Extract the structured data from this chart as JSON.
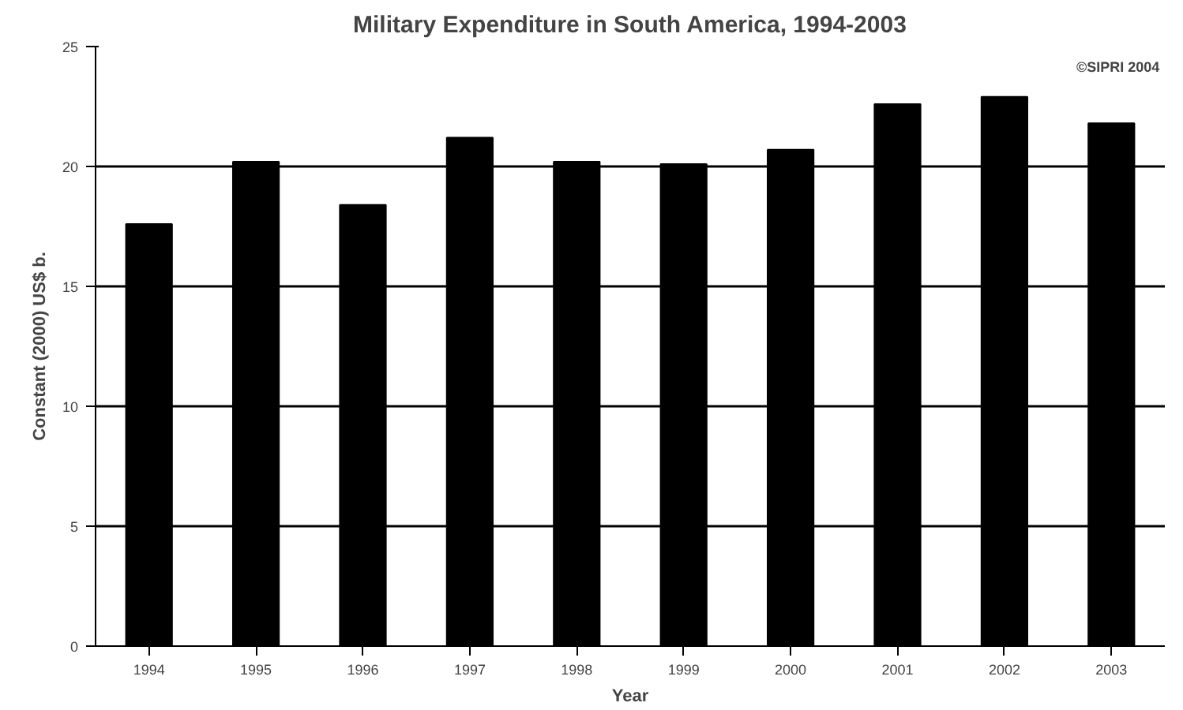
{
  "chart_data": {
    "type": "bar",
    "title": "Military Expenditure in South America, 1994-2003",
    "xlabel": "Year",
    "ylabel": "Constant (2000) US$ b.",
    "categories": [
      "1994",
      "1995",
      "1996",
      "1997",
      "1998",
      "1999",
      "2000",
      "2001",
      "2002",
      "2003"
    ],
    "values": [
      17.6,
      20.2,
      18.4,
      21.2,
      20.2,
      20.1,
      20.7,
      22.6,
      22.9,
      21.8
    ],
    "color": "#000000",
    "ylim": [
      0,
      25
    ],
    "yticks": [
      0,
      5,
      10,
      15,
      20,
      25
    ],
    "grid": "y",
    "annotations": [
      "©SIPRI 2004"
    ]
  }
}
